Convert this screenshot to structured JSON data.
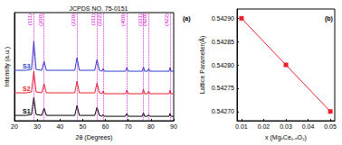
{
  "chart_data": [
    {
      "type": "line",
      "title": "JCPDS NO. 75-0151",
      "label": "(a)",
      "x_label": "2θ (Degrees)",
      "y_label": "Intensity (a.u.)",
      "x": [
        20,
        25,
        27.5,
        28.5,
        29.5,
        32,
        33,
        34,
        46.5,
        47.5,
        48.5,
        55.3,
        56.3,
        57.3,
        58.5,
        59,
        59.5,
        68.8,
        69.4,
        70,
        76.2,
        76.7,
        77.2,
        78.5,
        79,
        79.5,
        88,
        88.4,
        88.8,
        90
      ],
      "series": [
        {
          "name": "S1",
          "color": "#000000",
          "values": [
            6,
            6,
            7,
            26,
            7,
            6,
            14,
            6,
            6,
            17,
            6,
            6,
            15,
            6,
            5,
            7,
            5,
            5,
            8,
            5,
            5,
            9,
            5,
            5,
            7,
            5,
            5,
            8,
            5,
            5
          ]
        },
        {
          "name": "S2",
          "color": "#e8202a",
          "values": [
            31,
            31,
            32,
            55,
            32,
            31,
            41,
            31,
            31,
            44,
            31,
            31,
            42,
            31,
            30,
            33,
            30,
            30,
            34,
            30,
            30,
            35,
            30,
            30,
            33,
            30,
            30,
            34,
            30,
            30
          ]
        },
        {
          "name": "S3",
          "color": "#2a3cc8",
          "values": [
            56,
            56,
            57,
            88,
            57,
            56,
            66,
            56,
            56,
            70,
            56,
            56,
            68,
            56,
            55,
            58,
            55,
            55,
            59,
            55,
            55,
            60,
            55,
            55,
            58,
            55,
            55,
            59,
            55,
            55
          ]
        }
      ],
      "xlim": [
        20,
        90
      ],
      "xticks": [
        20,
        30,
        40,
        50,
        60,
        70,
        80,
        90
      ],
      "ylim": [
        0,
        120
      ],
      "tick_labels": "x",
      "grid": false,
      "annotations": [
        {
          "text": "(111)",
          "x": 28.5
        },
        {
          "text": "(200)",
          "x": 33
        },
        {
          "text": "(220)",
          "x": 47.5
        },
        {
          "text": "(311)",
          "x": 56.3
        },
        {
          "text": "(222)",
          "x": 59
        },
        {
          "text": "(400)",
          "x": 69.4
        },
        {
          "text": "(331)",
          "x": 76.7
        },
        {
          "text": "(420)",
          "x": 79
        },
        {
          "text": "(422)",
          "x": 88.4
        }
      ]
    },
    {
      "type": "line",
      "label": "(b)",
      "x_label": "x (MgₓCe₁₋ₓO₂)",
      "y_label": "Lattice Parameter(Å)",
      "x": [
        0.01,
        0.03,
        0.05
      ],
      "series": [
        {
          "color": "#e8202a",
          "marker": "square",
          "values": [
            0.5429,
            0.5428,
            0.5427
          ]
        }
      ],
      "xlim": [
        0.008,
        0.052
      ],
      "xticks": [
        0.01,
        0.02,
        0.03,
        0.04,
        0.05
      ],
      "ylim": [
        0.54268,
        0.54292
      ],
      "yticks": [
        {
          "value": 0.5427,
          "label": "0.54270"
        },
        {
          "value": 0.54275,
          "label": "0.54275"
        },
        {
          "value": 0.5428,
          "label": "0.54280"
        },
        {
          "value": 0.54285,
          "label": "0.54285"
        },
        {
          "value": 0.5429,
          "label": "0.54290"
        }
      ],
      "grid": false
    }
  ]
}
